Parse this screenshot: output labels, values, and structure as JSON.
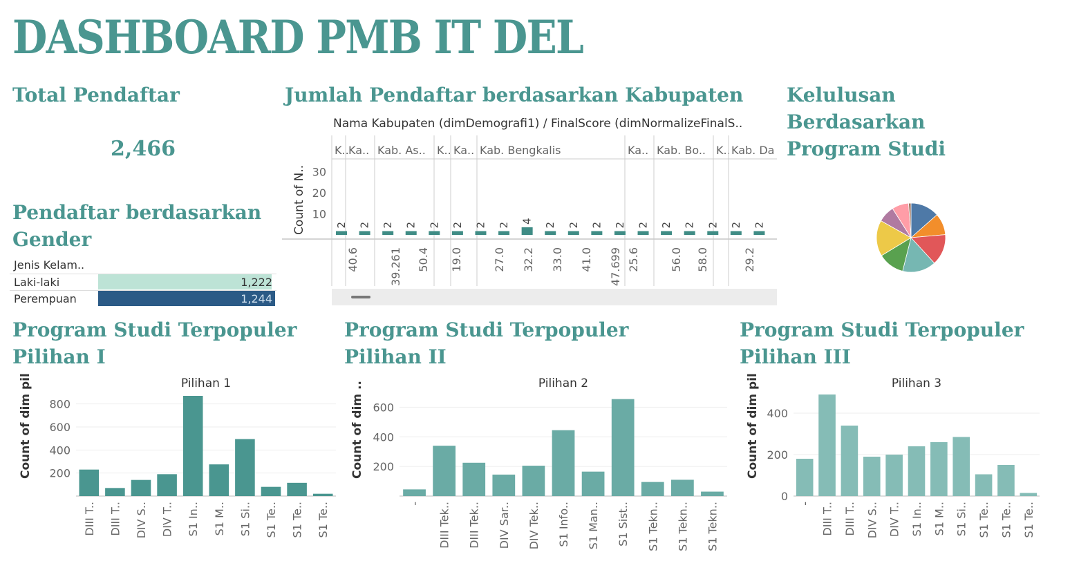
{
  "header": {
    "title": "DASHBOARD PMB IT DEL"
  },
  "total": {
    "title": "Total Pendaftar",
    "value": "2,466"
  },
  "gender": {
    "title": "Pendaftar berdasarkan Gender",
    "column_header": "Jenis Kelam..",
    "rows": [
      {
        "label": "Laki-laki",
        "value": 1222,
        "display": "1,222",
        "color": "#bde3d6"
      },
      {
        "label": "Perempuan",
        "value": 1244,
        "display": "1,244",
        "color": "#2b5a86"
      }
    ]
  },
  "kabupaten": {
    "title": "Jumlah Pendaftar berdasarkan Kabupaten",
    "header_line": "Nama Kabupaten (dimDemografi1)  /  FinalScore (dimNormalizeFinalS..",
    "ylabel": "Count of N..",
    "yticks": [
      "30",
      "20",
      "10"
    ],
    "groups": [
      "K..",
      "Ka..",
      "Kab. As..",
      "K..",
      "Ka..",
      "Kab. Bengkalis",
      "Ka..",
      "Kab. Bo..",
      "K..",
      "Kab. Da"
    ],
    "bar_values": [
      2,
      2,
      2,
      2,
      2,
      2,
      2,
      2,
      4,
      2,
      2,
      2,
      2,
      2,
      2,
      2,
      2,
      2,
      2
    ],
    "x_labels": [
      "40.6",
      "39.261",
      "50.4",
      "19.0",
      "27.0",
      "32.2",
      "33.0",
      "41.0",
      "47.699",
      "25.6",
      "56.0",
      "58.0",
      "29.2"
    ]
  },
  "kelulusan": {
    "title": "Kelulusan Berdasarkan Program Studi",
    "slices": [
      {
        "value": 12,
        "color": "#4e79a7"
      },
      {
        "value": 9,
        "color": "#f28e2b"
      },
      {
        "value": 13,
        "color": "#e15759"
      },
      {
        "value": 14,
        "color": "#76b7b2"
      },
      {
        "value": 11,
        "color": "#59a14f"
      },
      {
        "value": 15,
        "color": "#edc948"
      },
      {
        "value": 7,
        "color": "#b07aa1"
      },
      {
        "value": 7,
        "color": "#ff9da7"
      },
      {
        "value": 1,
        "color": "#9c755f"
      }
    ]
  },
  "chart_data": [
    {
      "type": "bar",
      "section_title": "Program Studi Terpopuler Pilihan I",
      "title": "Pilihan 1",
      "ylabel": "Count of dim pil..",
      "ylim": [
        0,
        900
      ],
      "yticks": [
        200,
        400,
        600,
        800
      ],
      "categories": [
        "DIII T..",
        "DIII T..",
        "DIV S..",
        "DIV T..",
        "S1 In..",
        "S1 M..",
        "S1 Si..",
        "S1 Te..",
        "S1 Te..",
        "S1 Te.."
      ],
      "values": [
        230,
        70,
        140,
        190,
        870,
        275,
        495,
        80,
        115,
        20
      ],
      "color": "#4a9690"
    },
    {
      "type": "bar",
      "section_title": "Program Studi Terpopuler Pilihan II",
      "title": "Pilihan 2",
      "ylabel": "Count of dim ..",
      "ylim": [
        0,
        700
      ],
      "yticks": [
        200,
        400,
        600
      ],
      "categories": [
        "-",
        "DIII Tek..",
        "DIII Tek..",
        "DIV Sar..",
        "DIV Tek..",
        "S1 Info..",
        "S1 Man..",
        "S1 Sist..",
        "S1 Tekn..",
        "S1 Tekn..",
        "S1 Tekn.."
      ],
      "values": [
        45,
        340,
        225,
        145,
        205,
        445,
        165,
        655,
        95,
        110,
        30
      ],
      "color": "#6aaba5"
    },
    {
      "type": "bar",
      "section_title": "Program Studi Terpopuler Pilihan III",
      "title": "Pilihan 3",
      "ylabel": "Count of dim pil..",
      "ylim": [
        0,
        500
      ],
      "yticks": [
        0,
        200,
        400
      ],
      "categories": [
        "-",
        "DIII T..",
        "DIII T..",
        "DIV S..",
        "DIV T..",
        "S1 In..",
        "S1 M..",
        "S1 Si..",
        "S1 Te..",
        "S1 Te..",
        "S1 Te.."
      ],
      "values": [
        180,
        490,
        340,
        190,
        200,
        240,
        260,
        285,
        105,
        150,
        15
      ],
      "color": "#85bcb6"
    }
  ]
}
